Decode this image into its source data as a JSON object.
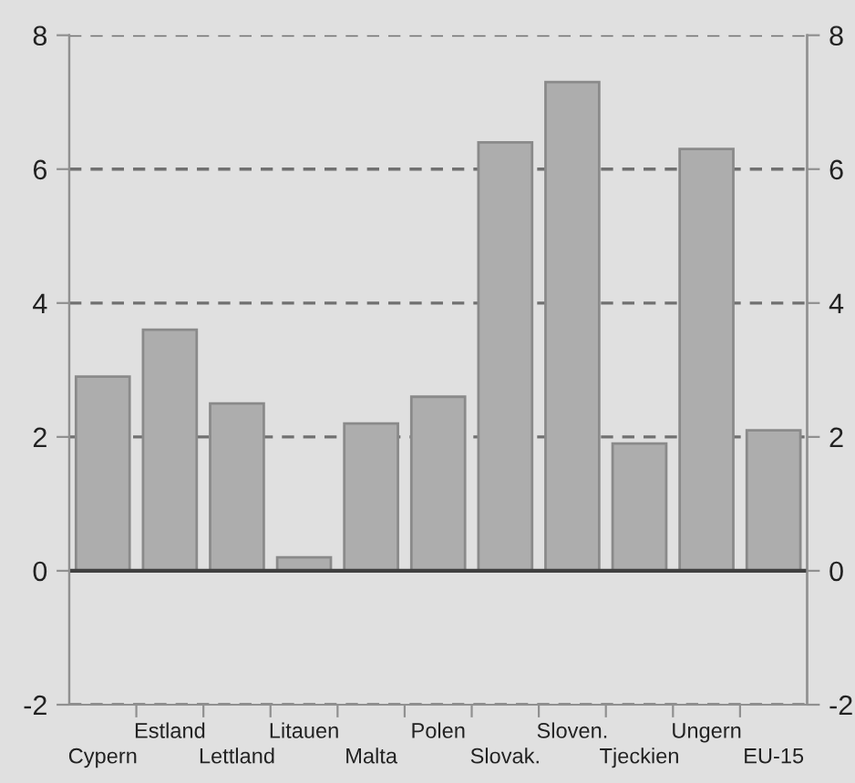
{
  "chart_data": {
    "type": "bar",
    "categories": [
      "Cypern",
      "Estland",
      "Lettland",
      "Litauen",
      "Malta",
      "Polen",
      "Slovak.",
      "Sloven.",
      "Tjeckien",
      "Ungern",
      "EU-15"
    ],
    "values": [
      2.9,
      3.6,
      2.5,
      0.2,
      2.2,
      2.6,
      6.4,
      7.3,
      1.9,
      6.3,
      2.1
    ],
    "color": "#adadad",
    "ylim": [
      -2,
      8
    ],
    "yticks": [
      -2,
      0,
      2,
      4,
      6,
      8
    ],
    "y2lim": [
      -2,
      8
    ],
    "y2ticks": [
      -2,
      0,
      2,
      4,
      6,
      8
    ],
    "grid": "y",
    "ref_lines": [
      {
        "axis": "y",
        "value": 0,
        "color": "#404040",
        "line_style": "solid"
      }
    ]
  }
}
